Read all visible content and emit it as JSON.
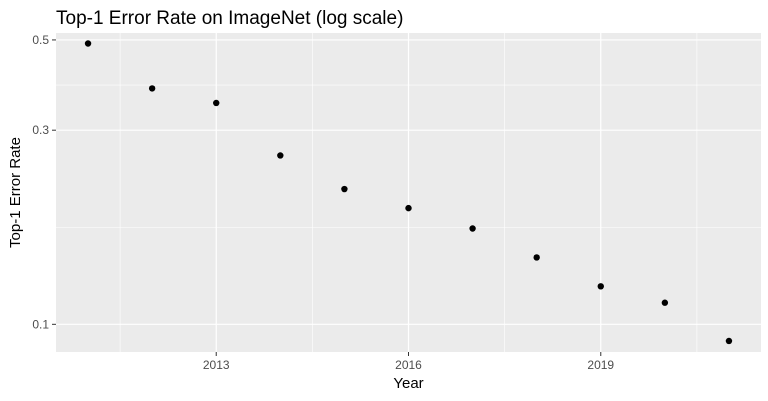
{
  "chart_data": {
    "type": "scatter",
    "title": "Top-1 Error Rate on ImageNet (log scale)",
    "xlabel": "Year",
    "ylabel": "Top-1 Error Rate",
    "xlim": [
      2010.5,
      2021.5
    ],
    "ylim": [
      0.0855,
      0.52
    ],
    "yscale": "log",
    "x_ticks": [
      2013,
      2016,
      2019
    ],
    "y_ticks": [
      0.1,
      0.3,
      0.5
    ],
    "grid": true,
    "point_color": "#000000",
    "panel_color": "#ebebeb",
    "grid_color": "#ffffff",
    "points": [
      {
        "x": 2011,
        "y": 0.49
      },
      {
        "x": 2012,
        "y": 0.38
      },
      {
        "x": 2013,
        "y": 0.35
      },
      {
        "x": 2014,
        "y": 0.26
      },
      {
        "x": 2015,
        "y": 0.215
      },
      {
        "x": 2016,
        "y": 0.193
      },
      {
        "x": 2017,
        "y": 0.172
      },
      {
        "x": 2018,
        "y": 0.146
      },
      {
        "x": 2019,
        "y": 0.124
      },
      {
        "x": 2020,
        "y": 0.113
      },
      {
        "x": 2021,
        "y": 0.091
      }
    ]
  }
}
